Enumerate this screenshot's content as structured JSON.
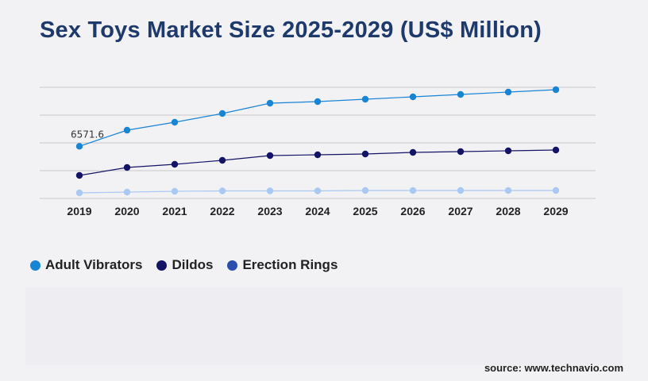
{
  "title": "Sex Toys Market Size 2025-2029 (US$ Million)",
  "source": "source: www.technavio.com",
  "colors": {
    "adult_vibrators": "#1884d4",
    "dildos": "#141466",
    "erection_rings": "#a9c8f2",
    "erection_rings_legend": "#2a4db0",
    "grid": "#c8c8cc",
    "title": "#1e3a6b"
  },
  "chart_data": {
    "type": "line",
    "title": "Sex Toys Market Size 2025-2029 (US$ Million)",
    "x": [
      "2019",
      "2020",
      "2021",
      "2022",
      "2023",
      "2024",
      "2025",
      "2026",
      "2027",
      "2028",
      "2029"
    ],
    "grid": true,
    "legend_position": "bottom-left",
    "ylim": [
      0,
      14000
    ],
    "series": [
      {
        "name": "Adult Vibrators",
        "values": [
          6571.6,
          8600,
          9600,
          10700,
          12000,
          12200,
          12500,
          12800,
          13100,
          13400,
          13700
        ],
        "data_labels": [
          "6571.6",
          "",
          "",
          "",
          "",
          "",
          "",
          "",
          "",
          "",
          ""
        ]
      },
      {
        "name": "Dildos",
        "values": [
          2900,
          3900,
          4300,
          4800,
          5400,
          5500,
          5600,
          5800,
          5900,
          6000,
          6100
        ]
      },
      {
        "name": "Erection Rings",
        "values": [
          700,
          800,
          900,
          950,
          950,
          950,
          1000,
          1000,
          1000,
          1000,
          1000
        ]
      }
    ]
  }
}
